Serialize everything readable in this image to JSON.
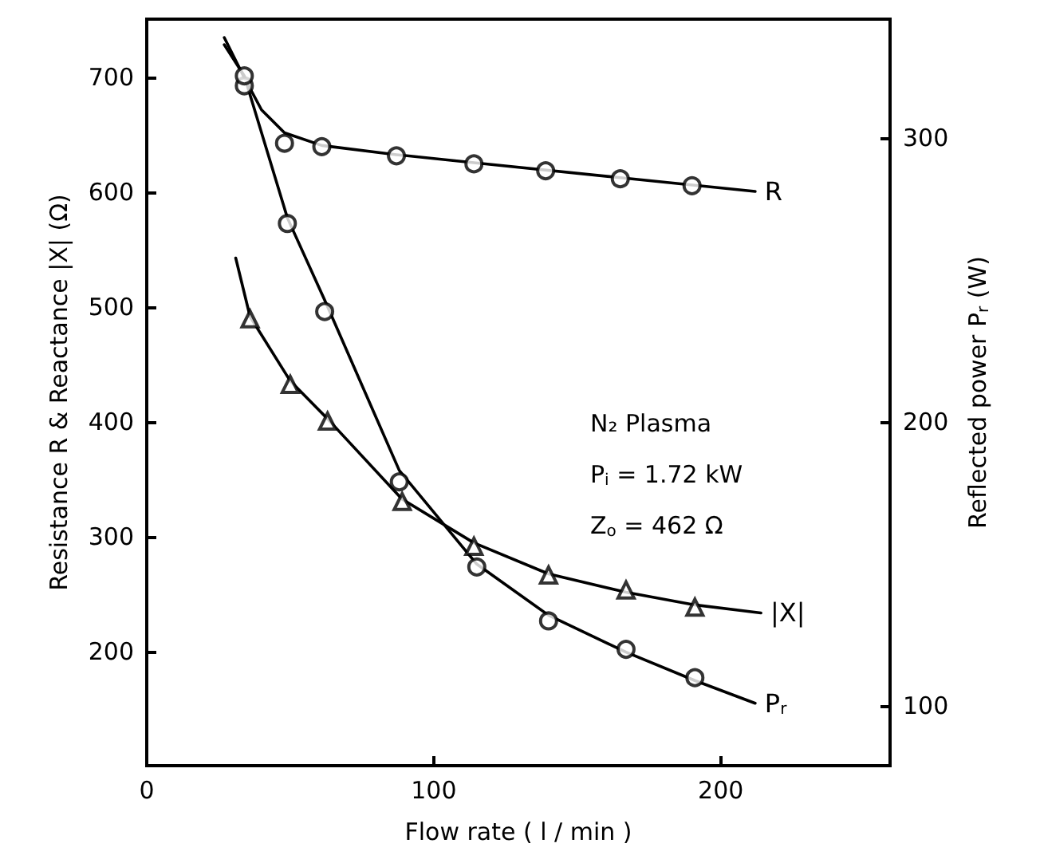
{
  "chart_data": {
    "type": "scatter",
    "xlabel": "Flow rate ( l / min )",
    "ylabel": "Resistance R & Reactance |X| (Ω)",
    "y2label": "Reflected power P$_{r}$ (W)",
    "xlim": [
      0,
      259
    ],
    "xticks": [
      0,
      100,
      200
    ],
    "ylim": [
      101,
      751
    ],
    "yticks": [
      200,
      300,
      400,
      500,
      600,
      700
    ],
    "y2lim": [
      79,
      342
    ],
    "y2ticks": [
      100,
      200,
      300
    ],
    "grid": false,
    "legend": false,
    "series": [
      {
        "marker": "circle",
        "color": "#000000",
        "x": [
          34,
          48,
          61,
          87,
          114,
          139,
          165,
          190
        ],
        "values": [
          693,
          643,
          640,
          632,
          625,
          619,
          612,
          606
        ]
      },
      {
        "marker": "circle",
        "color": "#000000",
        "axis": "y2",
        "x": [
          34,
          49,
          62,
          88,
          115,
          140,
          167,
          191
        ],
        "values": [
          322,
          270,
          239,
          179,
          149,
          130,
          120,
          110
        ]
      },
      {
        "marker": "triangle",
        "color": "#000000",
        "x": [
          36,
          50,
          63,
          89,
          114,
          140,
          167,
          191
        ],
        "values": [
          490,
          433,
          401,
          331,
          292,
          267,
          254,
          239
        ]
      },
      {
        "type": "line",
        "name": "R",
        "marker": "none",
        "color": "#000000",
        "x": [
          27,
          34,
          40,
          48,
          61,
          87,
          114,
          165,
          212
        ],
        "values": [
          735,
          700,
          672,
          652,
          641,
          633,
          626,
          613,
          601
        ]
      },
      {
        "type": "line",
        "name": "P$_{r}$",
        "marker": "none",
        "color": "#000000",
        "axis": "y2",
        "x": [
          27,
          34,
          49,
          62,
          88,
          115,
          140,
          167,
          191,
          212
        ],
        "values": [
          333,
          322,
          272,
          243,
          183,
          150,
          132,
          119,
          109,
          101
        ]
      },
      {
        "type": "line",
        "name": "|X|",
        "marker": "none",
        "color": "#000000",
        "x": [
          31,
          36,
          50,
          63,
          89,
          114,
          140,
          167,
          191,
          214
        ],
        "values": [
          543,
          492,
          436,
          403,
          333,
          295,
          268,
          252,
          241,
          234
        ]
      }
    ],
    "annotations": [
      "N₂ Plasma",
      "P$_{i}$ = 1.72 kW",
      "Z$_{o}$ = 462 Ω"
    ]
  }
}
